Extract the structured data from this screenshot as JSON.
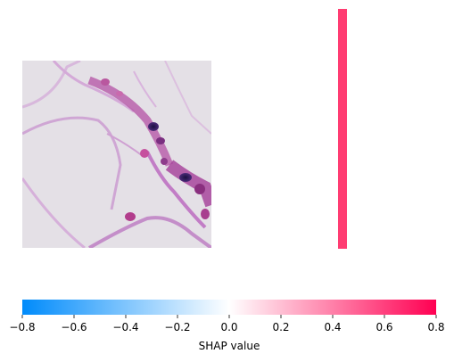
{
  "chart_data": {
    "type": "heatmap",
    "title": "",
    "panels": [
      {
        "kind": "image",
        "description_role": "input-image"
      },
      {
        "kind": "shap-map",
        "dominant_color": "#ff3c72"
      }
    ],
    "colorbar": {
      "xlabel": "SHAP value",
      "xlim": [
        -0.8,
        0.8
      ],
      "ticks": [
        -0.8,
        -0.6,
        -0.4,
        -0.2,
        0.0,
        0.2,
        0.4,
        0.6,
        0.8
      ],
      "tick_labels": [
        "−0.8",
        "−0.6",
        "−0.4",
        "−0.2",
        "0.0",
        "0.2",
        "0.4",
        "0.6",
        "0.8"
      ],
      "colors": {
        "negative": "#008bfb",
        "neutral": "#ffffff",
        "positive": "#ff0052"
      }
    },
    "grid": false,
    "legend": "none"
  }
}
